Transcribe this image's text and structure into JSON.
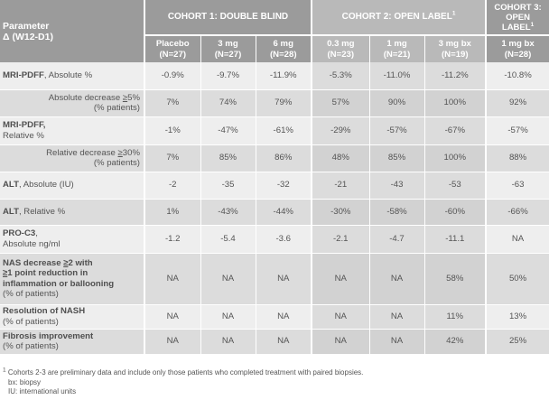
{
  "header": {
    "param_line1": "Parameter",
    "param_line2": "Δ (W12-D1)",
    "cohort1": "COHORT 1: DOUBLE BLIND",
    "cohort2": "COHORT 2:  OPEN LABEL",
    "cohort2_sup": "1",
    "cohort3_l1": "COHORT 3:",
    "cohort3_l2": "OPEN",
    "cohort3_l3": "LABEL",
    "cohort3_sup": "1",
    "subcols": [
      {
        "dose": "Placebo",
        "n": "(N=27)"
      },
      {
        "dose": "3 mg",
        "n": "(N=27)"
      },
      {
        "dose": "6 mg",
        "n": "(N=28)"
      },
      {
        "dose": "0.3 mg",
        "n": "(N=23)"
      },
      {
        "dose": "1 mg",
        "n": "(N=21)"
      },
      {
        "dose": "3 mg bx",
        "n": "(N=19)"
      },
      {
        "dose": "1 mg bx",
        "n": "(N=28)"
      }
    ]
  },
  "rows": [
    {
      "b": "MRI-PDFF",
      "t": ", Absolute %",
      "v": [
        "-0.9%",
        "-9.7%",
        "-11.9%",
        "-5.3%",
        "-11.0%",
        "-11.2%",
        "-10.8%"
      ]
    },
    {
      "t1": "Absolute decrease ",
      "u": "≥",
      "t2": "5%",
      "t3": "(% patients)",
      "v": [
        "7%",
        "74%",
        "79%",
        "57%",
        "90%",
        "100%",
        "92%"
      ]
    },
    {
      "b": "MRI-PDFF,",
      "t": "Relative %",
      "v": [
        "-1%",
        "-47%",
        "-61%",
        "-29%",
        "-57%",
        "-67%",
        "-57%"
      ]
    },
    {
      "t1": "Relative decrease ",
      "u": "≥",
      "t2": "30%",
      "t3": "(% patients)",
      "v": [
        "7%",
        "85%",
        "86%",
        "48%",
        "85%",
        "100%",
        "88%"
      ]
    },
    {
      "b": "ALT",
      "t": ", Absolute (IU)",
      "v": [
        "-2",
        "-35",
        "-32",
        "-21",
        "-43",
        "-53",
        "-63"
      ]
    },
    {
      "b": "ALT",
      "t": ", Relative %",
      "v": [
        "1%",
        "-43%",
        "-44%",
        "-30%",
        "-58%",
        "-60%",
        "-66%"
      ]
    },
    {
      "b": "PRO-C3",
      "t": ",",
      "t3": "Absolute ng/ml",
      "v": [
        "-1.2",
        "-5.4",
        "-3.6",
        "-2.1",
        "-4.7",
        "-11.1",
        "NA"
      ]
    },
    {
      "nas": [
        "NAS decrease ",
        "≥",
        "2 with",
        "≥",
        "1 point reduction in",
        "inflammation or ballooning",
        "(% of patients)"
      ],
      "v": [
        "NA",
        "NA",
        "NA",
        "NA",
        "NA",
        "58%",
        "50%"
      ]
    },
    {
      "b": "Resolution of NASH",
      "t3": "(% of patients)",
      "v": [
        "NA",
        "NA",
        "NA",
        "NA",
        "NA",
        "11%",
        "13%"
      ]
    },
    {
      "b": "Fibrosis improvement",
      "t3": "(% of patients)",
      "v": [
        "NA",
        "NA",
        "NA",
        "NA",
        "NA",
        "42%",
        "25%"
      ]
    }
  ],
  "footnotes": {
    "f1_sup": "1",
    "f1": " Cohorts 2-3 are preliminary data and include only those patients who completed treatment with paired biopsies.",
    "f2": "bx: biopsy",
    "f3": "IU: international units"
  }
}
